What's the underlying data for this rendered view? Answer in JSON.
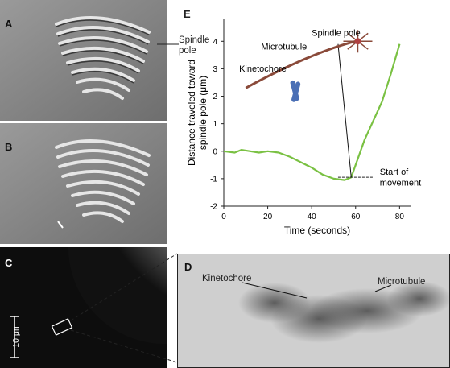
{
  "panels": {
    "A": {
      "label": "A",
      "callout_line1": "Spindle",
      "callout_line2": "pole"
    },
    "B": {
      "label": "B"
    },
    "C": {
      "label": "C",
      "scale_bar": "10 μm"
    },
    "D": {
      "label": "D",
      "kinetochore": "Kinetochore",
      "microtubule": "Microtubule"
    },
    "E": {
      "label": "E"
    }
  },
  "inset": {
    "spindle_pole": "Spindle pole",
    "microtubule": "Microtubule",
    "kinetochore": "Kinetochore"
  },
  "annotation": {
    "line1": "Start of",
    "line2": "movement"
  },
  "colors": {
    "curve": "#7ac143",
    "kinetochore": "#4a6fb5",
    "pole": "#b04040",
    "micrograph_bg": "#c8c8c8"
  },
  "chart_data": {
    "type": "line",
    "xlabel": "Time (seconds)",
    "ylabel": [
      "Distance traveled toward",
      "spindle pole (μm)"
    ],
    "xlim": [
      0,
      85
    ],
    "ylim": [
      -2,
      4.8
    ],
    "xticks": [
      0,
      20,
      40,
      60,
      80
    ],
    "yticks": [
      -2,
      -1,
      0,
      1,
      2,
      3,
      4
    ],
    "grid": false,
    "series": [
      {
        "x": [
          0,
          5,
          8,
          12,
          16,
          20,
          25,
          30,
          35,
          40,
          45,
          50,
          55,
          58,
          60,
          64,
          68,
          72,
          76,
          80
        ],
        "y": [
          0,
          -0.05,
          0.05,
          0.0,
          -0.05,
          0.0,
          -0.05,
          -0.2,
          -0.4,
          -0.6,
          -0.85,
          -1.0,
          -1.05,
          -0.95,
          -0.5,
          0.4,
          1.1,
          1.8,
          2.8,
          3.9
        ]
      }
    ]
  }
}
